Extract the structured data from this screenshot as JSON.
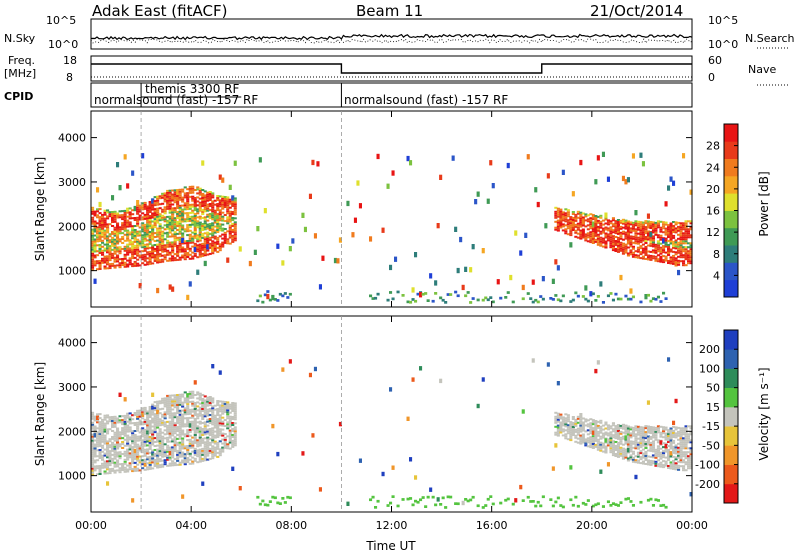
{
  "header": {
    "station": "Adak East (fitACF)",
    "beam": "Beam 11",
    "date": "21/Oct/2014"
  },
  "panels": {
    "nsky_label": "N.Sky",
    "nsearch_label": "N.Search",
    "nsky_ticks": [
      "10^5",
      "10^0"
    ],
    "nsearch_ticks": [
      "10^5",
      "10^0"
    ],
    "freq_label": "Freq.",
    "freq_unit": "[MHz]",
    "freq_ticks": [
      "18",
      "8"
    ],
    "nave_label": "Nave",
    "nave_ticks": [
      "60",
      "0"
    ],
    "cpid_label": "CPID",
    "cpid_segments": [
      {
        "label": "normalsound (fast) -157 RF",
        "start_h": 0,
        "end_h": 10
      },
      {
        "label": "themis 3300 RF",
        "start_h": 2,
        "end_h": 6
      },
      {
        "label": "normalsound (fast) -157 RF",
        "start_h": 10,
        "end_h": 24
      }
    ]
  },
  "chart_data": [
    {
      "type": "heatmap",
      "title": "",
      "xlabel": "Time UT",
      "ylabel": "Slant Range [km]",
      "x_ticks": [
        "00:00",
        "04:00",
        "08:00",
        "12:00",
        "16:00",
        "20:00",
        "00:00"
      ],
      "xlim_hours": [
        0,
        24
      ],
      "y_ticks": [
        1000,
        2000,
        3000,
        4000
      ],
      "ylim": [
        180,
        4600
      ],
      "colorbar": {
        "label": "Power [dB]",
        "ticks": [
          "28",
          "24",
          "20",
          "16",
          "12",
          "8",
          "4"
        ],
        "range": [
          0,
          30
        ]
      },
      "series": [
        {
          "name": "",
          "hours": [
            0,
            1,
            2,
            3,
            4,
            5,
            5.8
          ],
          "lower_km": [
            1000,
            1050,
            1100,
            1200,
            1250,
            1400,
            1700
          ],
          "upper_km": [
            2400,
            2300,
            2500,
            2800,
            2900,
            2700,
            2600
          ]
        },
        {
          "name": "",
          "hours": [
            18.5,
            19.5,
            20.5,
            21.5,
            22.5,
            23.5,
            24
          ],
          "lower_km": [
            1900,
            1700,
            1500,
            1300,
            1200,
            1100,
            1100
          ],
          "upper_km": [
            2400,
            2300,
            2200,
            2100,
            2100,
            2100,
            2100
          ]
        }
      ]
    },
    {
      "type": "heatmap",
      "title": "",
      "xlabel": "Time UT",
      "ylabel": "Slant Range [km]",
      "x_ticks": [
        "00:00",
        "04:00",
        "08:00",
        "12:00",
        "16:00",
        "20:00",
        "00:00"
      ],
      "xlim_hours": [
        0,
        24
      ],
      "y_ticks": [
        1000,
        2000,
        3000,
        4000
      ],
      "ylim": [
        180,
        4600
      ],
      "colorbar": {
        "label": "Velocity [m s⁻¹]",
        "ticks": [
          "200",
          "100",
          "50",
          "15",
          "-15",
          "-50",
          "-100",
          "-200"
        ],
        "range": [
          -250,
          250
        ]
      },
      "dominant_value_band": [
        -15,
        15
      ]
    }
  ],
  "colors": {
    "power_scale": [
      "#1f3fd6",
      "#2b55c8",
      "#2e7d7a",
      "#3f9a55",
      "#7cc23f",
      "#dfe02d",
      "#f5a623",
      "#f07b1e",
      "#e83a1a",
      "#e81414"
    ],
    "velocity_scale": [
      "#1f3fbf",
      "#2e62b0",
      "#2e8c5a",
      "#54c43f",
      "#c4c4bc",
      "#e7c43a",
      "#f0962a",
      "#ec5a1c",
      "#e31818"
    ]
  }
}
